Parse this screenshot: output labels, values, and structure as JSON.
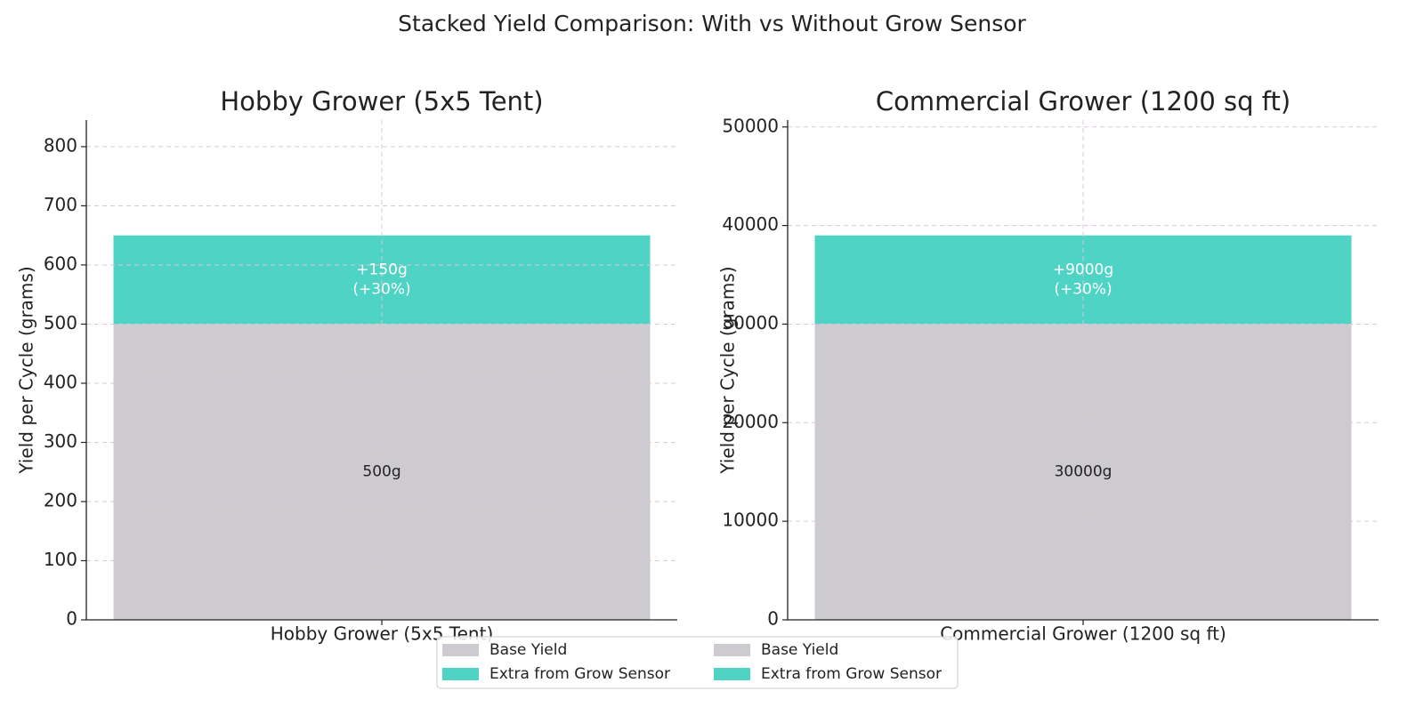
{
  "figure": {
    "suptitle": "Stacked Yield Comparison: With vs Without Grow Sensor"
  },
  "colors": {
    "base": "#cdcbcf",
    "extra": "#4fd3c4",
    "grid": "#d9c7dc",
    "axis": "#222222",
    "bar_label_extra": "#ffffff",
    "bar_label_base": "#222222"
  },
  "chart_data": [
    {
      "type": "bar",
      "stacked": true,
      "title": "Hobby Grower (5x5 Tent)",
      "ylabel": "Yield per Cycle (grams)",
      "xlabel": "",
      "categories": [
        "Hobby Grower (5x5 Tent)"
      ],
      "ylim": [
        0,
        845
      ],
      "yticks": [
        0,
        100,
        200,
        300,
        400,
        500,
        600,
        700,
        800
      ],
      "grid": true,
      "series": [
        {
          "name": "Base Yield",
          "color_key": "base",
          "values": [
            500
          ],
          "labels": [
            "500g"
          ]
        },
        {
          "name": "Extra from Grow Sensor",
          "color_key": "extra",
          "values": [
            150
          ],
          "labels": [
            "+150g\n(+30%)"
          ]
        }
      ]
    },
    {
      "type": "bar",
      "stacked": true,
      "title": "Commercial Grower (1200 sq ft)",
      "ylabel": "Yield per Cycle (grams)",
      "xlabel": "",
      "categories": [
        "Commercial Grower (1200 sq ft)"
      ],
      "ylim": [
        0,
        50700
      ],
      "yticks": [
        0,
        10000,
        20000,
        30000,
        40000,
        50000
      ],
      "grid": true,
      "series": [
        {
          "name": "Base Yield",
          "color_key": "base",
          "values": [
            30000
          ],
          "labels": [
            "30000g"
          ]
        },
        {
          "name": "Extra from Grow Sensor",
          "color_key": "extra",
          "values": [
            9000
          ],
          "labels": [
            "+9000g\n(+30%)"
          ]
        }
      ]
    }
  ],
  "legend": {
    "placement": "bottom-center",
    "entries": [
      {
        "label": "Base Yield",
        "color_key": "base"
      },
      {
        "label": "Extra from Grow Sensor",
        "color_key": "extra"
      },
      {
        "label": "Base Yield",
        "color_key": "base"
      },
      {
        "label": "Extra from Grow Sensor",
        "color_key": "extra"
      }
    ]
  }
}
